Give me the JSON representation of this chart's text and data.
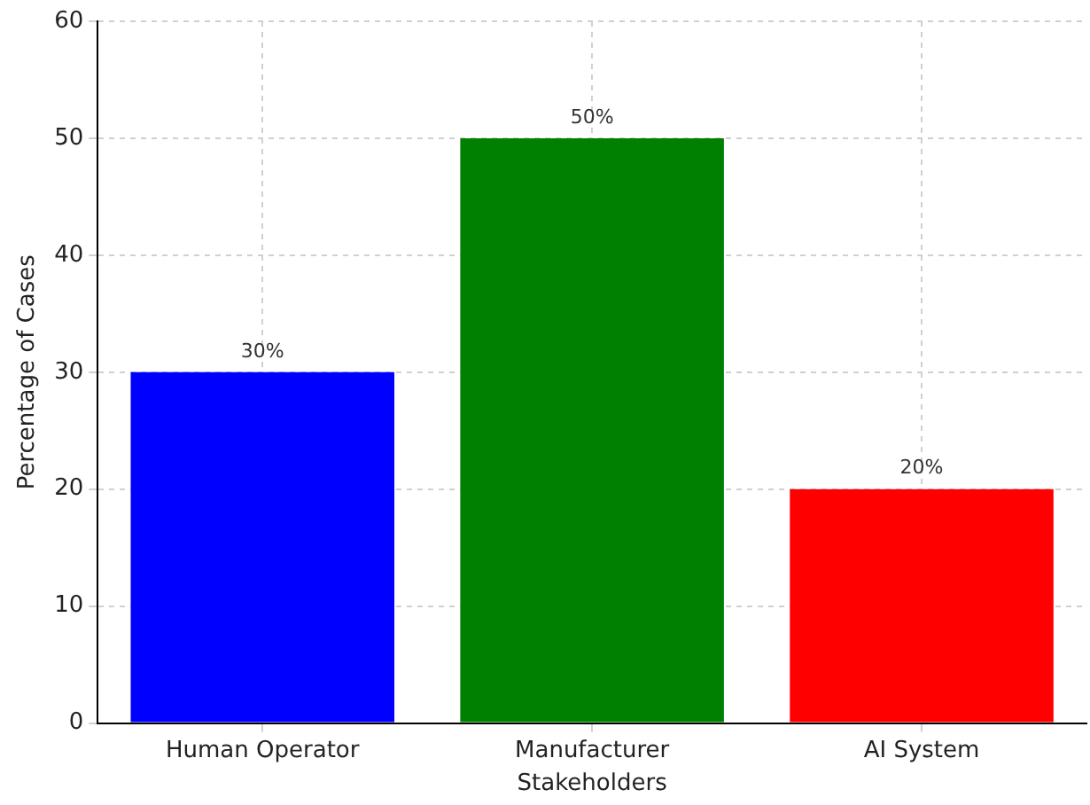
{
  "chart_data": {
    "type": "bar",
    "xlabel": "Stakeholders",
    "ylabel": "Percentage of Cases",
    "categories": [
      "Human Operator",
      "Manufacturer",
      "AI System"
    ],
    "values": [
      30,
      50,
      20
    ],
    "colors": [
      "#0000ff",
      "#008000",
      "#ff0000"
    ],
    "value_labels": [
      "30%",
      "50%",
      "20%"
    ],
    "ylim": [
      0,
      60
    ],
    "yticks": [
      0,
      10,
      20,
      30,
      40,
      50,
      60
    ],
    "grid": true,
    "legend": false
  }
}
